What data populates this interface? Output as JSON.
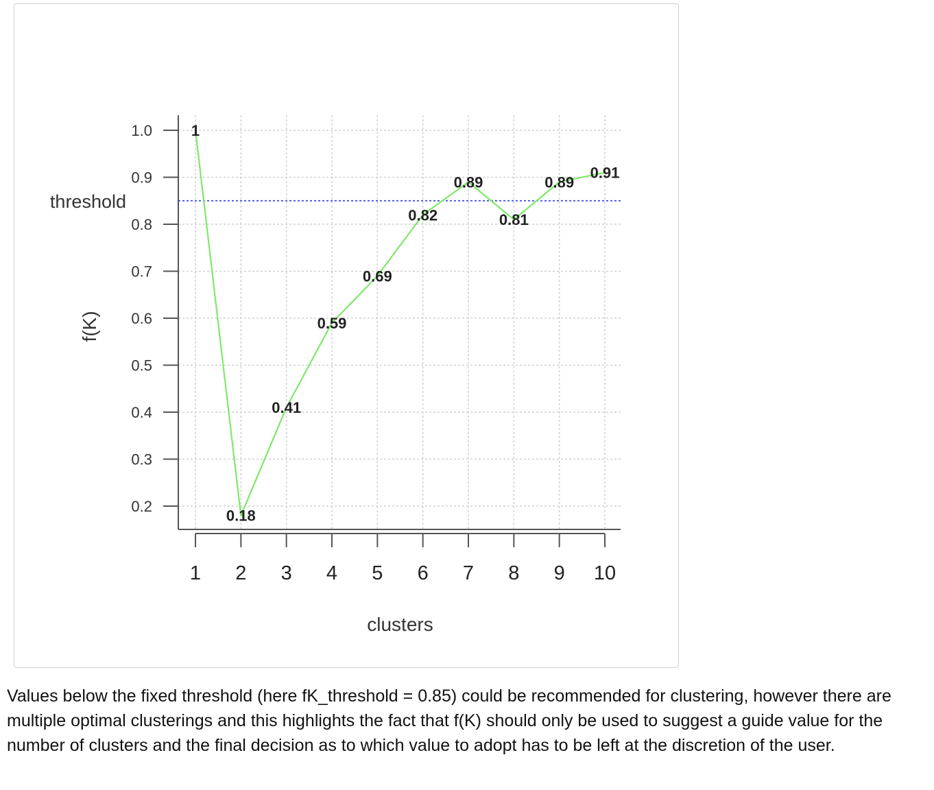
{
  "chart_data": {
    "type": "line",
    "x": [
      1,
      2,
      3,
      4,
      5,
      6,
      7,
      8,
      9,
      10
    ],
    "values": [
      1,
      0.18,
      0.41,
      0.59,
      0.69,
      0.82,
      0.89,
      0.81,
      0.89,
      0.91
    ],
    "data_labels": [
      "1",
      "0.18",
      "0.41",
      "0.59",
      "0.69",
      "0.82",
      "0.89",
      "0.81",
      "0.89",
      "0.91"
    ],
    "xlabel": "clusters",
    "ylabel": "f(K)",
    "xlim": [
      1,
      10
    ],
    "ylim": [
      0.2,
      1.0
    ],
    "x_ticks": [
      "1",
      "2",
      "3",
      "4",
      "5",
      "6",
      "7",
      "8",
      "9",
      "10"
    ],
    "y_ticks": [
      "0.2",
      "0.3",
      "0.4",
      "0.5",
      "0.6",
      "0.7",
      "0.8",
      "0.9",
      "1.0"
    ],
    "y_tick_values": [
      0.2,
      0.3,
      0.4,
      0.5,
      0.6,
      0.7,
      0.8,
      0.9,
      1.0
    ],
    "threshold": {
      "label": "threshold",
      "value": 0.85,
      "color": "#3344ee"
    },
    "line_color": "#7fe86a",
    "grid": true
  },
  "caption": "Values below the fixed threshold (here fK_threshold = 0.85) could be recommended for clustering, however there are multiple optimal clusterings and this highlights the fact that f(K) should only be used to suggest a guide value for the number of clusters and the final decision as to which value to adopt has to be left at the discretion of the user."
}
